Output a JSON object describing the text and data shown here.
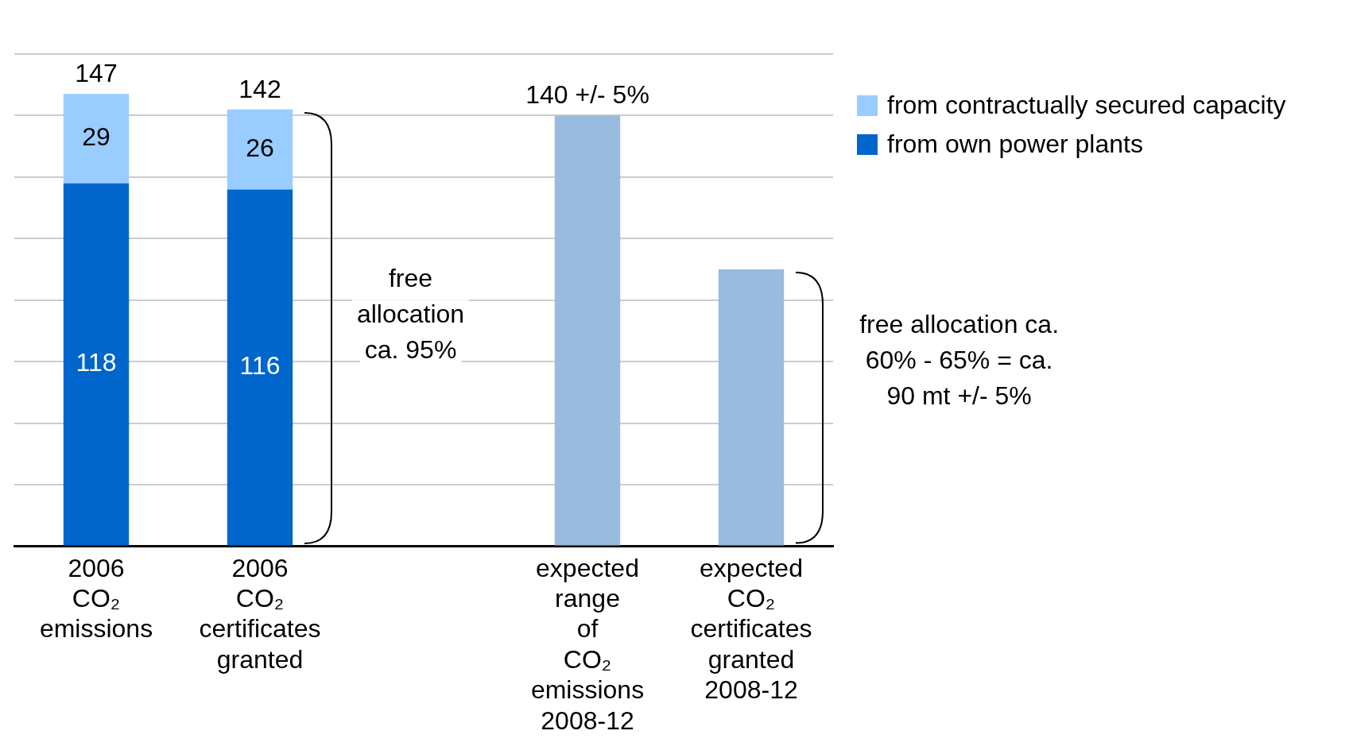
{
  "chart_data": {
    "type": "bar",
    "stacked": true,
    "categories": [
      "2006 CO₂ emissions",
      "2006 CO₂ certificates granted",
      null,
      "expected range of CO₂ emissions 2008-12",
      "expected CO₂ certificates granted 2008-12"
    ],
    "series": [
      {
        "name": "from own power plants",
        "color": "#0066cc",
        "values": [
          118,
          116,
          null,
          null,
          null
        ],
        "value_labels": [
          "118",
          "116",
          null,
          null,
          null
        ]
      },
      {
        "name": "from contractually secured capacity",
        "color": "#99ccff",
        "values": [
          29,
          26,
          null,
          null,
          null
        ],
        "value_labels": [
          "29",
          "26",
          null,
          null,
          null
        ]
      },
      {
        "color": "#99bbdd",
        "values": [
          null,
          null,
          null,
          140,
          90
        ],
        "value_labels": [
          null,
          null,
          null,
          "140 +/- 5%",
          null
        ]
      }
    ],
    "totals": [
      "147",
      "142",
      null,
      null,
      null
    ],
    "ylim": [
      0,
      160
    ],
    "yticks": [
      {
        "value": 0,
        "label": null
      },
      {
        "value": 20,
        "label": null
      },
      {
        "value": 40,
        "label": null
      },
      {
        "value": 60,
        "label": null
      },
      {
        "value": 80,
        "label": null
      },
      {
        "value": 100,
        "label": null
      },
      {
        "value": 120,
        "label": null
      },
      {
        "value": 140,
        "label": null
      },
      {
        "value": 160,
        "label": null
      }
    ],
    "tick_labels": "x",
    "grid": "y",
    "legend": "top right",
    "annotations": [
      "free allocation ca. 95%",
      "free allocation ca. 60% - 65% = ca. 90 mt +/- 5%"
    ]
  }
}
